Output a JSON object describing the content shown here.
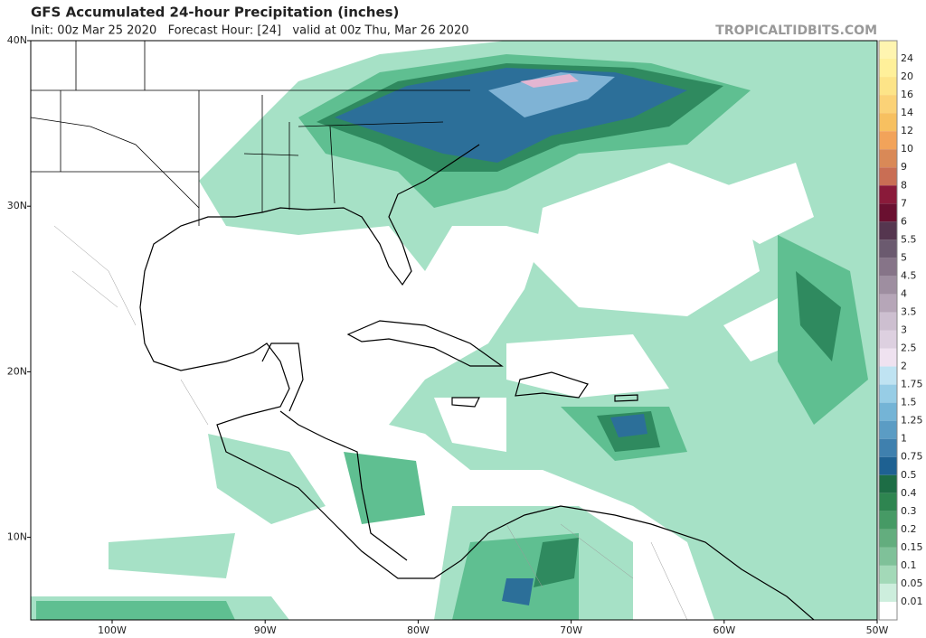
{
  "header": {
    "title": "GFS Accumulated 24-hour Precipitation (inches)",
    "subtitle": "Init: 00z Mar 25 2020   Forecast Hour: [24]   valid at 00z Thu, Mar 26 2020",
    "watermark": "TROPICALTIDBITS.COM"
  },
  "map": {
    "lat_labels": [
      "40N",
      "30N",
      "20N",
      "10N"
    ],
    "lon_labels": [
      "100W",
      "90W",
      "80W",
      "70W",
      "60W",
      "50W"
    ]
  },
  "colorbar": {
    "labels": [
      "24",
      "20",
      "16",
      "14",
      "12",
      "10",
      "9",
      "8",
      "7",
      "6",
      "5.5",
      "5",
      "4.5",
      "4",
      "3.5",
      "3",
      "2.5",
      "2",
      "1.75",
      "1.5",
      "1.25",
      "1",
      "0.75",
      "0.5",
      "0.4",
      "0.3",
      "0.2",
      "0.15",
      "0.1",
      "0.05",
      "0.01"
    ]
  }
}
